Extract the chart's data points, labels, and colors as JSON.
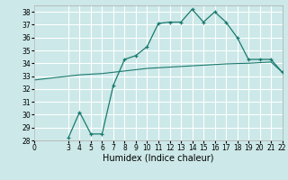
{
  "title": "",
  "xlabel": "Humidex (Indice chaleur)",
  "ylabel": "",
  "bg_color": "#cce8e8",
  "grid_color": "#ffffff",
  "line_color": "#1a7a6e",
  "xlim": [
    0,
    22
  ],
  "ylim": [
    28,
    38.5
  ],
  "yticks": [
    28,
    29,
    30,
    31,
    32,
    33,
    34,
    35,
    36,
    37,
    38
  ],
  "xticks": [
    0,
    3,
    4,
    5,
    6,
    7,
    8,
    9,
    10,
    11,
    12,
    13,
    14,
    15,
    16,
    17,
    18,
    19,
    20,
    21,
    22
  ],
  "line1_x": [
    3,
    4,
    5,
    6,
    7,
    8,
    9,
    10,
    11,
    12,
    13,
    14,
    15,
    16,
    17,
    18,
    19,
    20,
    21,
    22
  ],
  "line1_y": [
    28.2,
    30.2,
    28.5,
    28.5,
    32.3,
    34.3,
    34.6,
    35.3,
    37.1,
    37.2,
    37.2,
    38.2,
    37.2,
    38.0,
    37.2,
    36.0,
    34.3,
    34.3,
    34.3,
    33.3
  ],
  "line2_x": [
    0,
    3,
    4,
    5,
    6,
    7,
    8,
    9,
    10,
    11,
    12,
    13,
    14,
    15,
    16,
    17,
    18,
    19,
    20,
    21,
    22
  ],
  "line2_y": [
    32.7,
    33.0,
    33.1,
    33.15,
    33.2,
    33.3,
    33.4,
    33.5,
    33.6,
    33.65,
    33.7,
    33.75,
    33.8,
    33.85,
    33.9,
    33.95,
    33.98,
    34.0,
    34.05,
    34.1,
    33.3
  ],
  "xlabel_fontsize": 7,
  "tick_fontsize": 5.5
}
